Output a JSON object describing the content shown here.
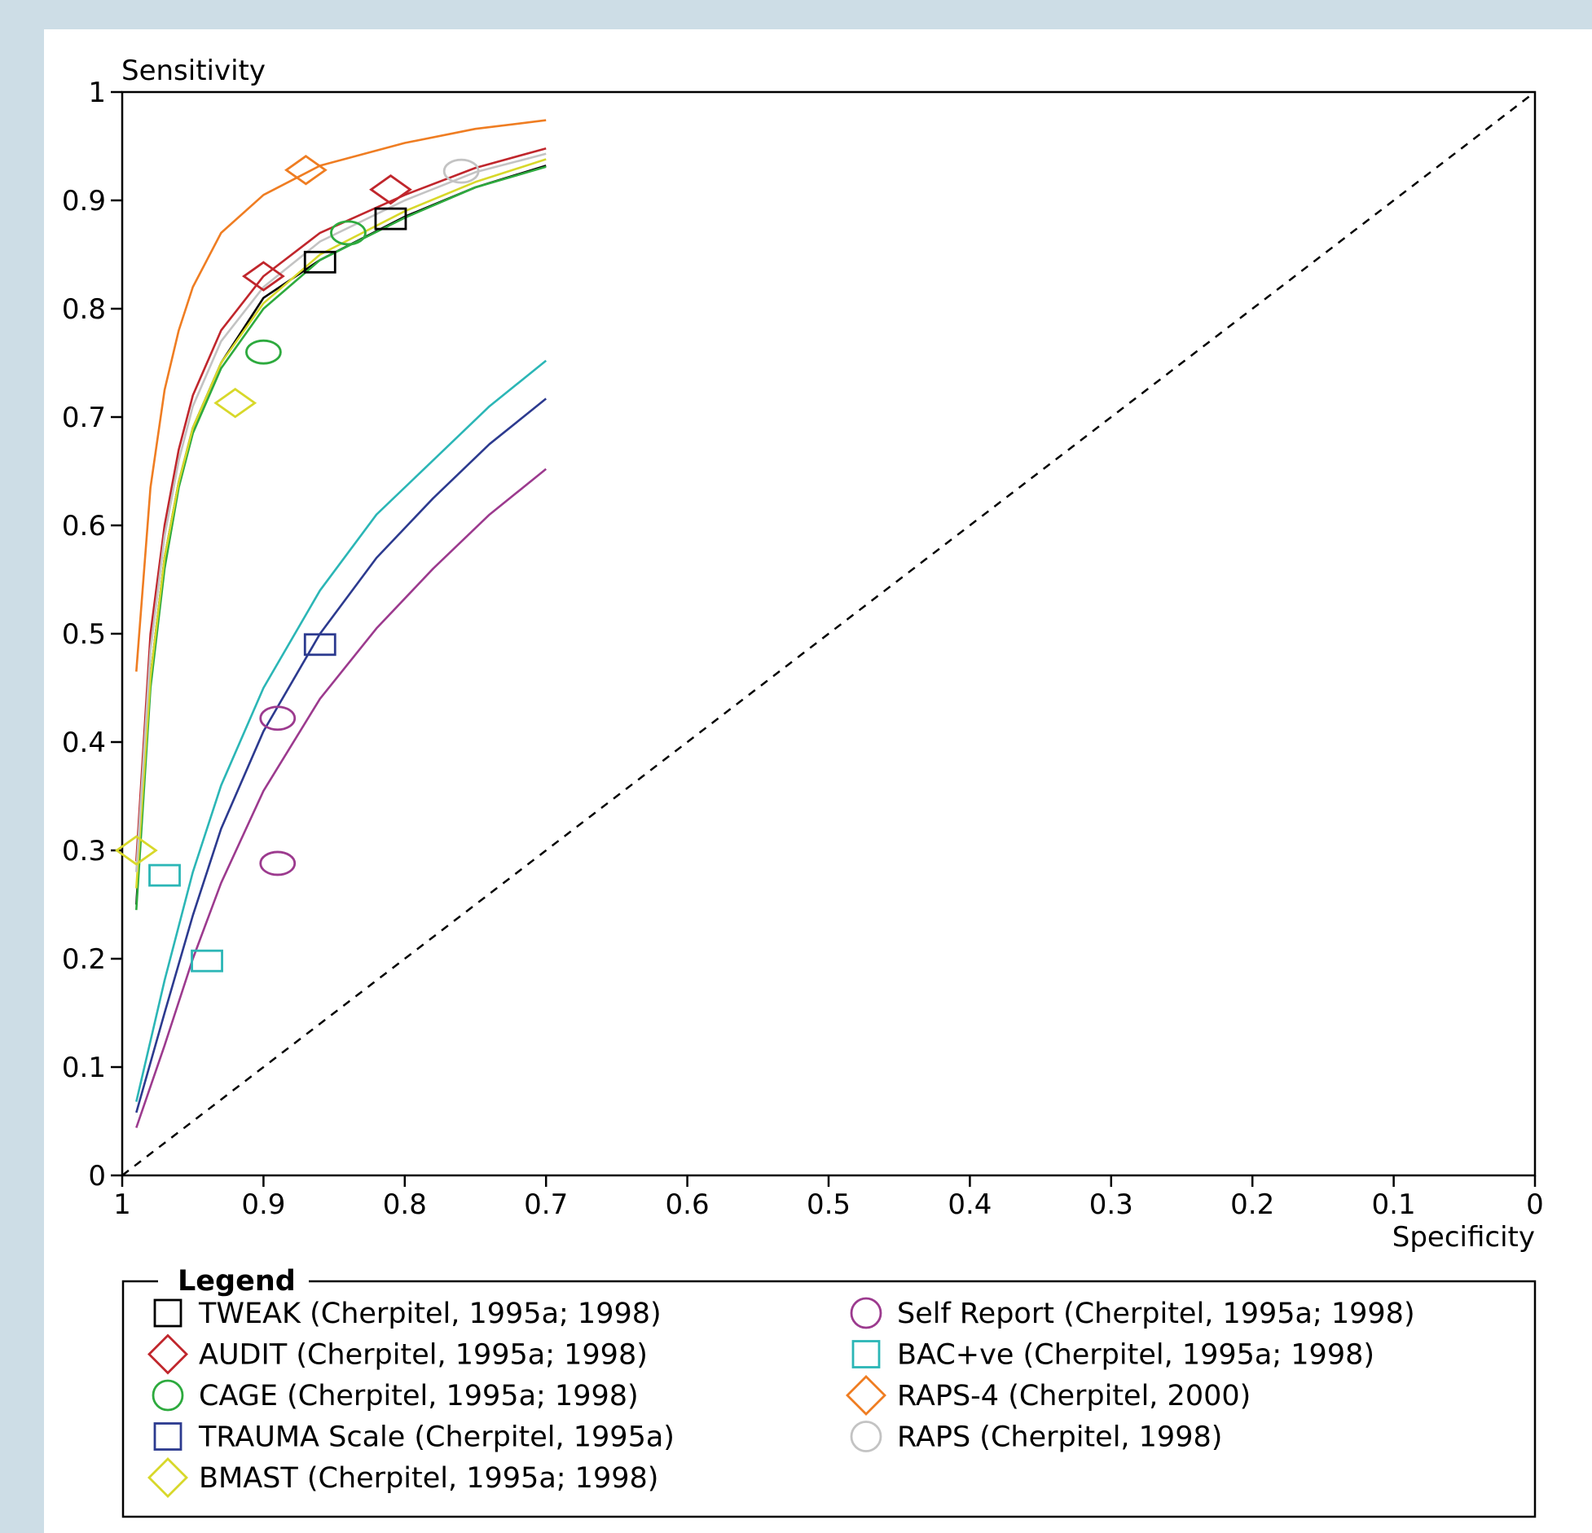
{
  "chart_data": {
    "type": "scatter",
    "xlabel": "Specificity",
    "ylabel": "Sensitivity",
    "xlim": [
      1,
      0
    ],
    "ylim": [
      0,
      1
    ],
    "xticks": [
      "1",
      "0.9",
      "0.8",
      "0.7",
      "0.6",
      "0.5",
      "0.4",
      "0.3",
      "0.2",
      "0.1",
      "0"
    ],
    "yticks": [
      "0",
      "0.1",
      "0.2",
      "0.3",
      "0.4",
      "0.5",
      "0.6",
      "0.7",
      "0.8",
      "0.9",
      "1"
    ],
    "reference_line": "diagonal dashed",
    "legend": {
      "title": "Legend",
      "placement": "bottom"
    },
    "series": [
      {
        "name": "TWEAK (Cherpitel, 1995a; 1998)",
        "color": "#000000",
        "marker": "square",
        "points": [
          [
            0.86,
            0.843
          ],
          [
            0.81,
            0.883
          ]
        ],
        "curve": [
          [
            0.99,
            0.25
          ],
          [
            0.98,
            0.46
          ],
          [
            0.97,
            0.57
          ],
          [
            0.96,
            0.64
          ],
          [
            0.95,
            0.69
          ],
          [
            0.93,
            0.75
          ],
          [
            0.9,
            0.81
          ],
          [
            0.86,
            0.845
          ],
          [
            0.8,
            0.885
          ],
          [
            0.75,
            0.912
          ],
          [
            0.7,
            0.932
          ]
        ]
      },
      {
        "name": "AUDIT (Cherpitel, 1995a; 1998)",
        "color": "#c0262c",
        "marker": "diamond",
        "points": [
          [
            0.9,
            0.83
          ],
          [
            0.81,
            0.91
          ]
        ],
        "curve": [
          [
            0.99,
            0.29
          ],
          [
            0.98,
            0.5
          ],
          [
            0.97,
            0.6
          ],
          [
            0.96,
            0.67
          ],
          [
            0.95,
            0.72
          ],
          [
            0.93,
            0.78
          ],
          [
            0.9,
            0.83
          ],
          [
            0.86,
            0.87
          ],
          [
            0.8,
            0.905
          ],
          [
            0.75,
            0.93
          ],
          [
            0.7,
            0.948
          ]
        ]
      },
      {
        "name": "CAGE (Cherpitel, 1995a; 1998)",
        "color": "#2daa3e",
        "marker": "circle",
        "points": [
          [
            0.9,
            0.76
          ],
          [
            0.84,
            0.87
          ]
        ],
        "curve": [
          [
            0.99,
            0.245
          ],
          [
            0.98,
            0.45
          ],
          [
            0.97,
            0.56
          ],
          [
            0.96,
            0.635
          ],
          [
            0.95,
            0.685
          ],
          [
            0.93,
            0.745
          ],
          [
            0.9,
            0.8
          ],
          [
            0.86,
            0.845
          ],
          [
            0.8,
            0.884
          ],
          [
            0.75,
            0.912
          ],
          [
            0.7,
            0.931
          ]
        ]
      },
      {
        "name": "TRAUMA Scale (Cherpitel, 1995a)",
        "color": "#2c3a8f",
        "marker": "square",
        "points": [
          [
            0.86,
            0.49
          ]
        ],
        "curve": [
          [
            0.99,
            0.058
          ],
          [
            0.97,
            0.15
          ],
          [
            0.95,
            0.24
          ],
          [
            0.93,
            0.32
          ],
          [
            0.9,
            0.41
          ],
          [
            0.86,
            0.5
          ],
          [
            0.82,
            0.57
          ],
          [
            0.78,
            0.625
          ],
          [
            0.74,
            0.675
          ],
          [
            0.7,
            0.717
          ]
        ]
      },
      {
        "name": "BMAST (Cherpitel, 1995a; 1998)",
        "color": "#d8d82a",
        "marker": "diamond",
        "points": [
          [
            0.92,
            0.713
          ],
          [
            0.99,
            0.3
          ]
        ],
        "curve": [
          [
            0.99,
            0.265
          ],
          [
            0.98,
            0.46
          ],
          [
            0.97,
            0.57
          ],
          [
            0.96,
            0.64
          ],
          [
            0.95,
            0.69
          ],
          [
            0.93,
            0.75
          ],
          [
            0.9,
            0.805
          ],
          [
            0.86,
            0.85
          ],
          [
            0.8,
            0.89
          ],
          [
            0.75,
            0.917
          ],
          [
            0.7,
            0.938
          ]
        ]
      },
      {
        "name": "Self Report (Cherpitel, 1995a; 1998)",
        "color": "#9c3a8e",
        "marker": "circle",
        "points": [
          [
            0.89,
            0.422
          ],
          [
            0.89,
            0.288
          ]
        ],
        "curve": [
          [
            0.99,
            0.044
          ],
          [
            0.97,
            0.12
          ],
          [
            0.95,
            0.2
          ],
          [
            0.93,
            0.27
          ],
          [
            0.9,
            0.355
          ],
          [
            0.86,
            0.44
          ],
          [
            0.82,
            0.505
          ],
          [
            0.78,
            0.56
          ],
          [
            0.74,
            0.61
          ],
          [
            0.7,
            0.652
          ]
        ]
      },
      {
        "name": "BAC+ve (Cherpitel, 1995a; 1998)",
        "color": "#2bb6b6",
        "marker": "square",
        "points": [
          [
            0.97,
            0.277
          ],
          [
            0.94,
            0.198
          ]
        ],
        "curve": [
          [
            0.99,
            0.068
          ],
          [
            0.97,
            0.18
          ],
          [
            0.95,
            0.28
          ],
          [
            0.93,
            0.36
          ],
          [
            0.9,
            0.45
          ],
          [
            0.86,
            0.54
          ],
          [
            0.82,
            0.61
          ],
          [
            0.78,
            0.66
          ],
          [
            0.74,
            0.71
          ],
          [
            0.7,
            0.752
          ]
        ]
      },
      {
        "name": "RAPS-4 (Cherpitel, 2000)",
        "color": "#ef7d22",
        "marker": "diamond",
        "points": [
          [
            0.87,
            0.928
          ]
        ],
        "curve": [
          [
            0.99,
            0.465
          ],
          [
            0.98,
            0.635
          ],
          [
            0.97,
            0.725
          ],
          [
            0.96,
            0.78
          ],
          [
            0.95,
            0.82
          ],
          [
            0.93,
            0.87
          ],
          [
            0.9,
            0.905
          ],
          [
            0.86,
            0.932
          ],
          [
            0.8,
            0.953
          ],
          [
            0.75,
            0.966
          ],
          [
            0.7,
            0.974
          ]
        ]
      },
      {
        "name": "RAPS (Cherpitel, 1998)",
        "color": "#c3c3c3",
        "marker": "circle",
        "points": [
          [
            0.76,
            0.927
          ]
        ],
        "curve": [
          [
            0.99,
            0.28
          ],
          [
            0.98,
            0.485
          ],
          [
            0.97,
            0.59
          ],
          [
            0.96,
            0.66
          ],
          [
            0.95,
            0.71
          ],
          [
            0.93,
            0.77
          ],
          [
            0.9,
            0.82
          ],
          [
            0.86,
            0.862
          ],
          [
            0.8,
            0.9
          ],
          [
            0.75,
            0.926
          ],
          [
            0.7,
            0.943
          ]
        ]
      }
    ]
  }
}
